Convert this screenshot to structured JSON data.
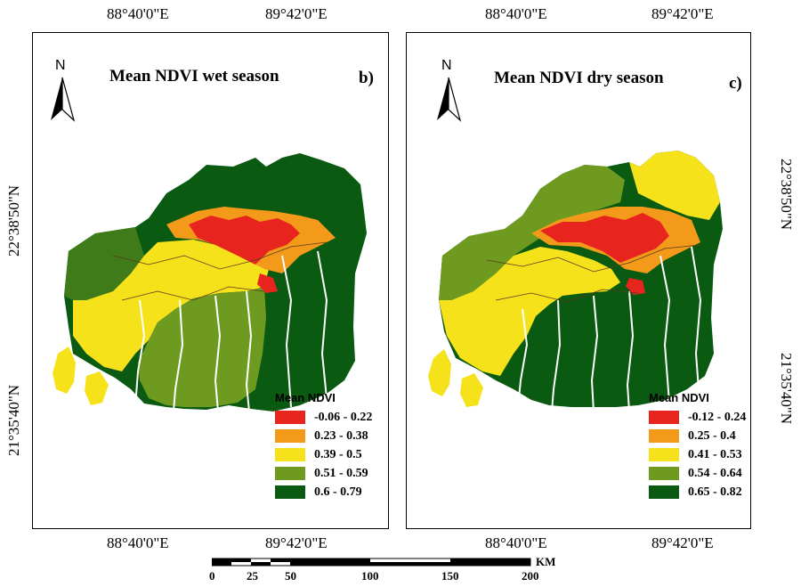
{
  "coordinates": {
    "lon_left": "88°40'0\"E",
    "lon_right": "89°42'0\"E",
    "lat_top": "22°38'50\"N",
    "lat_bottom": "21°35'40\"N"
  },
  "panels": [
    {
      "title": "Mean NDVI wet season",
      "label": "b)",
      "north_letter": "N",
      "legend": {
        "title": "Mean NDVI",
        "items": [
          {
            "label": "-0.06 - 0.22",
            "color": "#e8241f"
          },
          {
            "label": "0.23 - 0.38",
            "color": "#f39a1b"
          },
          {
            "label": "0.39 - 0.5",
            "color": "#f6e21a"
          },
          {
            "label": "0.51 - 0.59",
            "color": "#6e9b1f"
          },
          {
            "label": "0.6 - 0.79",
            "color": "#0b5a12"
          }
        ]
      }
    },
    {
      "title": "Mean NDVI dry season",
      "label": "c)",
      "north_letter": "N",
      "legend": {
        "title": "Mean NDVI",
        "items": [
          {
            "label": "-0.12 - 0.24",
            "color": "#e8241f"
          },
          {
            "label": "0.25 - 0.4",
            "color": "#f39a1b"
          },
          {
            "label": "0.41 - 0.53",
            "color": "#f6e21a"
          },
          {
            "label": "0.54 - 0.64",
            "color": "#6e9b1f"
          },
          {
            "label": "0.65 - 0.82",
            "color": "#0b5a12"
          }
        ]
      }
    }
  ],
  "scalebar": {
    "ticks": [
      "0",
      "25",
      "50",
      "100",
      "150",
      "200"
    ],
    "unit": "KM"
  }
}
